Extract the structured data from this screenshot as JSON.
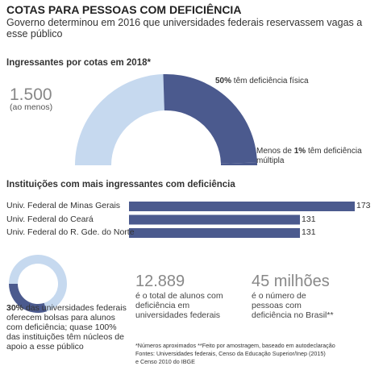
{
  "header": {
    "title": "COTAS PARA PESSOAS COM DEFICIÊNCIA",
    "subtitle": "Governo determinou em 2016 que universidades federais reservassem vagas a esse público"
  },
  "chart_data": [
    {
      "type": "pie",
      "semicircle": true,
      "title": "Ingressantes por cotas em 2018*",
      "annotation": {
        "value": "1.500",
        "note": "(ao menos)"
      },
      "categories": [
        null,
        "têm deficiência física",
        "têm deficiência múltipla"
      ],
      "values": [
        49,
        50,
        1
      ],
      "value_labels": [
        null,
        "50%",
        "1%"
      ],
      "label_prefixes": [
        null,
        null,
        "Menos de"
      ],
      "colors": [
        "#c6d9ef",
        "#4b5a8e",
        "#4b5a8e"
      ]
    },
    {
      "type": "bar",
      "orientation": "horizontal",
      "title": "Instituições com mais ingressantes com deficiência",
      "categories": [
        "Univ. Federal de Minas Gerais",
        "Univ. Federal do Ceará",
        "Univ. Federal do R. Gde. do Norte"
      ],
      "values": [
        173,
        131,
        131
      ],
      "color": "#4b5a8e",
      "xlim": [
        0,
        173
      ]
    },
    {
      "type": "pie",
      "values": [
        30,
        70
      ],
      "value_labels": [
        "30%",
        null
      ],
      "colors": [
        "#4b5a8e",
        "#c6d9ef"
      ],
      "caption": "das universidades federais oferecem bolsas para alunos com deficiência; quase 100% das instituições têm núcleos de apoio a esse público"
    }
  ],
  "stats": [
    {
      "value": "12.889",
      "text": "é o total de alunos com deficiência em universidades federais"
    },
    {
      "value": "45 milhões",
      "text": "é o número de pessoas com deficiência no Brasil**"
    }
  ],
  "footnotes": [
    "*Números aproximados **Feito por amostragem, baseado em autodeclaração",
    "Fontes: Universidades federais, Censo da Educação Superior/Inep (2015)",
    "e Censo 2010 do IBGE"
  ]
}
